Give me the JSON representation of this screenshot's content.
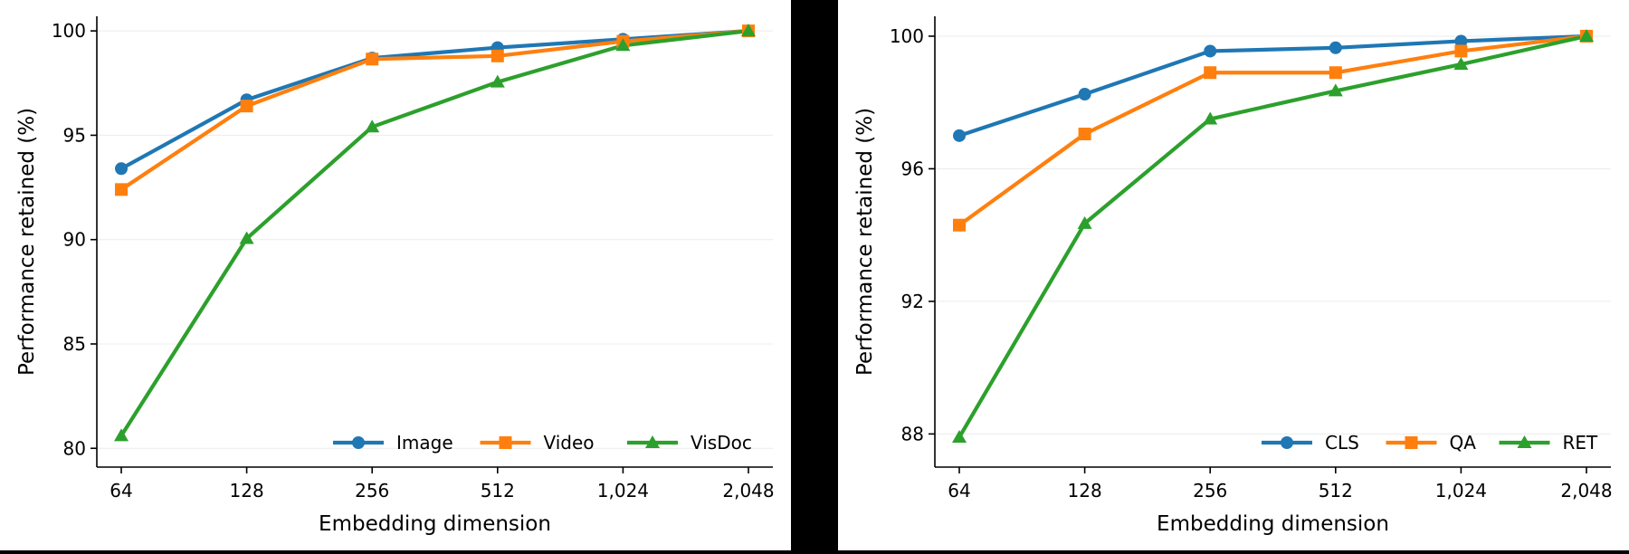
{
  "chart_data": [
    {
      "type": "line",
      "title": "",
      "xlabel": "Embedding dimension",
      "ylabel": "Performance retained (%)",
      "categories": [
        "64",
        "128",
        "256",
        "512",
        "1,024",
        "2,048"
      ],
      "ylim": [
        79.1,
        100.7
      ],
      "yticks": [
        80,
        85,
        90,
        95,
        100
      ],
      "grid": "y",
      "legend_position": "bottom-right",
      "series": [
        {
          "name": "Image",
          "color": "#1f77b4",
          "marker": "circle",
          "values": [
            93.4,
            96.7,
            98.7,
            99.2,
            99.6,
            100.0
          ]
        },
        {
          "name": "Video",
          "color": "#ff7f0e",
          "marker": "square",
          "values": [
            92.4,
            96.4,
            98.65,
            98.8,
            99.5,
            100.0
          ]
        },
        {
          "name": "VisDoc",
          "color": "#2ca02c",
          "marker": "triangle",
          "values": [
            80.6,
            90.05,
            95.4,
            97.55,
            99.3,
            100.0
          ]
        }
      ]
    },
    {
      "type": "line",
      "title": "",
      "xlabel": "Embedding dimension",
      "ylabel": "Performance retained (%)",
      "categories": [
        "64",
        "128",
        "256",
        "512",
        "1,024",
        "2,048"
      ],
      "ylim": [
        87.0,
        100.6
      ],
      "yticks": [
        88,
        92,
        96,
        100
      ],
      "grid": "y",
      "legend_position": "bottom-right",
      "series": [
        {
          "name": "CLS",
          "color": "#1f77b4",
          "marker": "circle",
          "values": [
            97.0,
            98.25,
            99.55,
            99.65,
            99.85,
            100.0
          ]
        },
        {
          "name": "QA",
          "color": "#ff7f0e",
          "marker": "square",
          "values": [
            94.3,
            97.05,
            98.9,
            98.9,
            99.55,
            100.0
          ]
        },
        {
          "name": "RET",
          "color": "#2ca02c",
          "marker": "triangle",
          "values": [
            87.9,
            94.35,
            97.5,
            98.35,
            99.15,
            100.0
          ]
        }
      ]
    }
  ]
}
